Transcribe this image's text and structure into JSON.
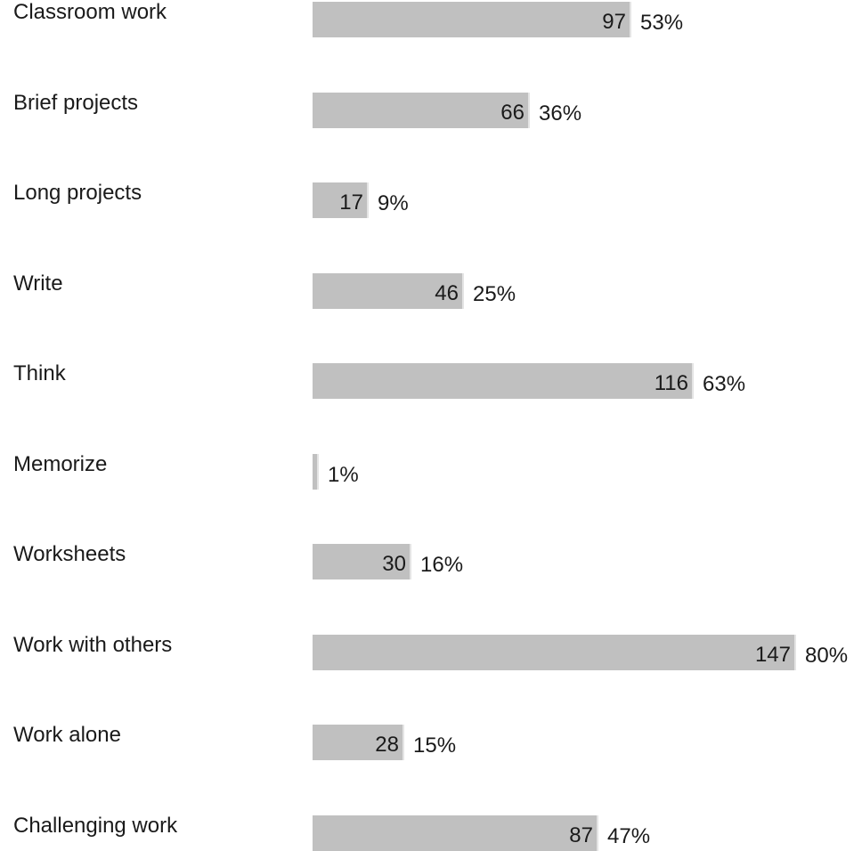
{
  "chart_data": {
    "type": "bar",
    "orientation": "horizontal",
    "categories": [
      "Classroom work",
      "Brief projects",
      "Long projects",
      "Write",
      "Think",
      "Memorize",
      "Worksheets",
      "Work with others",
      "Work alone",
      "Challenging work"
    ],
    "values": [
      97,
      66,
      17,
      46,
      116,
      2,
      30,
      147,
      28,
      87
    ],
    "count_labels": [
      "97",
      "66",
      "17",
      "46",
      "116",
      "",
      "30",
      "147",
      "28",
      "87"
    ],
    "percent_labels": [
      "53%",
      "36%",
      "9%",
      "25%",
      "63%",
      "1%",
      "16%",
      "80%",
      "15%",
      "47%"
    ],
    "xlim": [
      0,
      147
    ],
    "grid": false,
    "legend": "none",
    "colors": {
      "bar": "#c0c0c0",
      "bar_edge": "#e4e4e4",
      "text": "#1a1a1a",
      "background": "#ffffff"
    }
  }
}
